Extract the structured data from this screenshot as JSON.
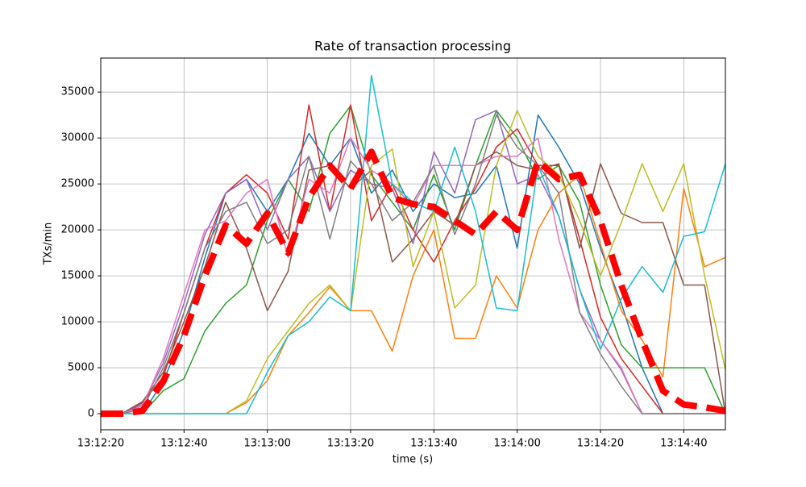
{
  "chart_data": {
    "type": "line",
    "title": "Rate of transaction processing",
    "xlabel": "time (s)",
    "ylabel": "TXs/min",
    "grid": true,
    "xlim": [
      "13:12:20",
      "13:14:50"
    ],
    "xticks": [
      "13:12:20",
      "13:12:40",
      "13:13:00",
      "13:13:20",
      "13:13:40",
      "13:14:00",
      "13:14:20",
      "13:14:40"
    ],
    "ylim": [
      -1750,
      38700
    ],
    "yticks": [
      0,
      5000,
      10000,
      15000,
      20000,
      25000,
      30000,
      35000
    ],
    "x": [
      "13:12:20",
      "13:12:25",
      "13:12:30",
      "13:12:35",
      "13:12:40",
      "13:12:45",
      "13:12:50",
      "13:12:55",
      "13:13:00",
      "13:13:05",
      "13:13:10",
      "13:13:15",
      "13:13:20",
      "13:13:25",
      "13:13:30",
      "13:13:35",
      "13:13:40",
      "13:13:45",
      "13:13:50",
      "13:13:55",
      "13:14:00",
      "13:14:05",
      "13:14:10",
      "13:14:15",
      "13:14:20",
      "13:14:25",
      "13:14:30",
      "13:14:35",
      "13:14:40",
      "13:14:45",
      "13:14:50"
    ],
    "series": [
      {
        "color": "#1f77b4",
        "values": [
          0,
          0,
          0,
          3500,
          9000,
          17000,
          24000,
          25500,
          22000,
          25500,
          30500,
          27000,
          30000,
          24000,
          26500,
          22000,
          25000,
          23500,
          24000,
          27000,
          18000,
          32500,
          29000,
          25000,
          18000,
          12000,
          5000,
          0,
          0,
          0,
          0
        ]
      },
      {
        "color": "#ff7f0e",
        "values": [
          0,
          0,
          0,
          0,
          0,
          0,
          0,
          1200,
          3600,
          8500,
          11000,
          13800,
          11200,
          11200,
          6800,
          15000,
          20000,
          8200,
          8200,
          15000,
          11500,
          20000,
          24000,
          26000,
          18500,
          11200,
          8000,
          4000,
          24500,
          16000,
          17000
        ]
      },
      {
        "color": "#2ca02c",
        "values": [
          0,
          0,
          0,
          2500,
          3800,
          9000,
          12000,
          14000,
          21000,
          25500,
          22000,
          30500,
          33500,
          26000,
          23000,
          20000,
          26000,
          20000,
          27000,
          33000,
          30000,
          25500,
          27000,
          23000,
          14000,
          7500,
          5000,
          5000,
          5000,
          5000,
          0
        ]
      },
      {
        "color": "#d62728",
        "values": [
          0,
          0,
          1200,
          4000,
          11000,
          18000,
          24000,
          26000,
          24000,
          19000,
          33600,
          22000,
          33600,
          21000,
          25000,
          20000,
          16500,
          21000,
          24500,
          29000,
          31000,
          27000,
          27000,
          19000,
          10500,
          6000,
          3000,
          0,
          0,
          0,
          0
        ]
      },
      {
        "color": "#9467bd",
        "values": [
          0,
          0,
          1000,
          5500,
          12000,
          19500,
          24000,
          25500,
          20000,
          25500,
          28000,
          22000,
          26500,
          25000,
          24500,
          18500,
          28500,
          24000,
          32000,
          33000,
          25000,
          26000,
          21500,
          13500,
          8000,
          4800,
          0,
          0,
          0,
          0,
          0
        ]
      },
      {
        "color": "#8c564b",
        "values": [
          0,
          0,
          1300,
          4500,
          10000,
          16000,
          23000,
          18000,
          11200,
          15500,
          26500,
          27000,
          24500,
          26500,
          16500,
          19000,
          22000,
          20500,
          27000,
          28500,
          27000,
          26500,
          27200,
          18000,
          27200,
          21800,
          20800,
          20800,
          14000,
          14000,
          0
        ]
      },
      {
        "color": "#e377c2",
        "values": [
          0,
          0,
          800,
          6000,
          13000,
          20000,
          21000,
          24000,
          25500,
          17000,
          25500,
          24000,
          30000,
          26500,
          25000,
          22500,
          27000,
          27000,
          27000,
          28000,
          28000,
          30000,
          19000,
          11000,
          8000,
          5000,
          0,
          0,
          0,
          0,
          0
        ]
      },
      {
        "color": "#7f7f7f",
        "values": [
          0,
          0,
          500,
          5000,
          11000,
          18000,
          22000,
          23000,
          18500,
          20000,
          28000,
          19000,
          27500,
          25000,
          21000,
          23000,
          27000,
          19500,
          25000,
          32500,
          29000,
          27000,
          24000,
          11000,
          6500,
          3000,
          0,
          0,
          0,
          0,
          0
        ]
      },
      {
        "color": "#bcbd22",
        "values": [
          0,
          0,
          0,
          0,
          0,
          0,
          0,
          1400,
          6000,
          9000,
          12000,
          14000,
          11200,
          27000,
          28800,
          16000,
          22000,
          11500,
          14000,
          27000,
          33000,
          28000,
          26000,
          21000,
          15000,
          20800,
          27200,
          22000,
          27200,
          15000,
          4800
        ]
      },
      {
        "color": "#17becf",
        "values": [
          0,
          0,
          0,
          0,
          0,
          0,
          0,
          0,
          4500,
          8500,
          10000,
          12700,
          11200,
          36800,
          25000,
          23000,
          22000,
          29000,
          22000,
          11500,
          11200,
          27000,
          21500,
          13500,
          7000,
          12500,
          16000,
          13200,
          19300,
          19800,
          27200
        ]
      },
      {
        "color": "#ff0000",
        "dashed": true,
        "values": [
          0,
          0,
          300,
          3500,
          8500,
          15000,
          20500,
          18500,
          21800,
          17500,
          23500,
          27000,
          24500,
          28500,
          23500,
          22800,
          22500,
          21000,
          19500,
          22000,
          20000,
          27500,
          25500,
          26000,
          21000,
          14000,
          8000,
          2500,
          1000,
          700,
          300
        ]
      }
    ]
  }
}
